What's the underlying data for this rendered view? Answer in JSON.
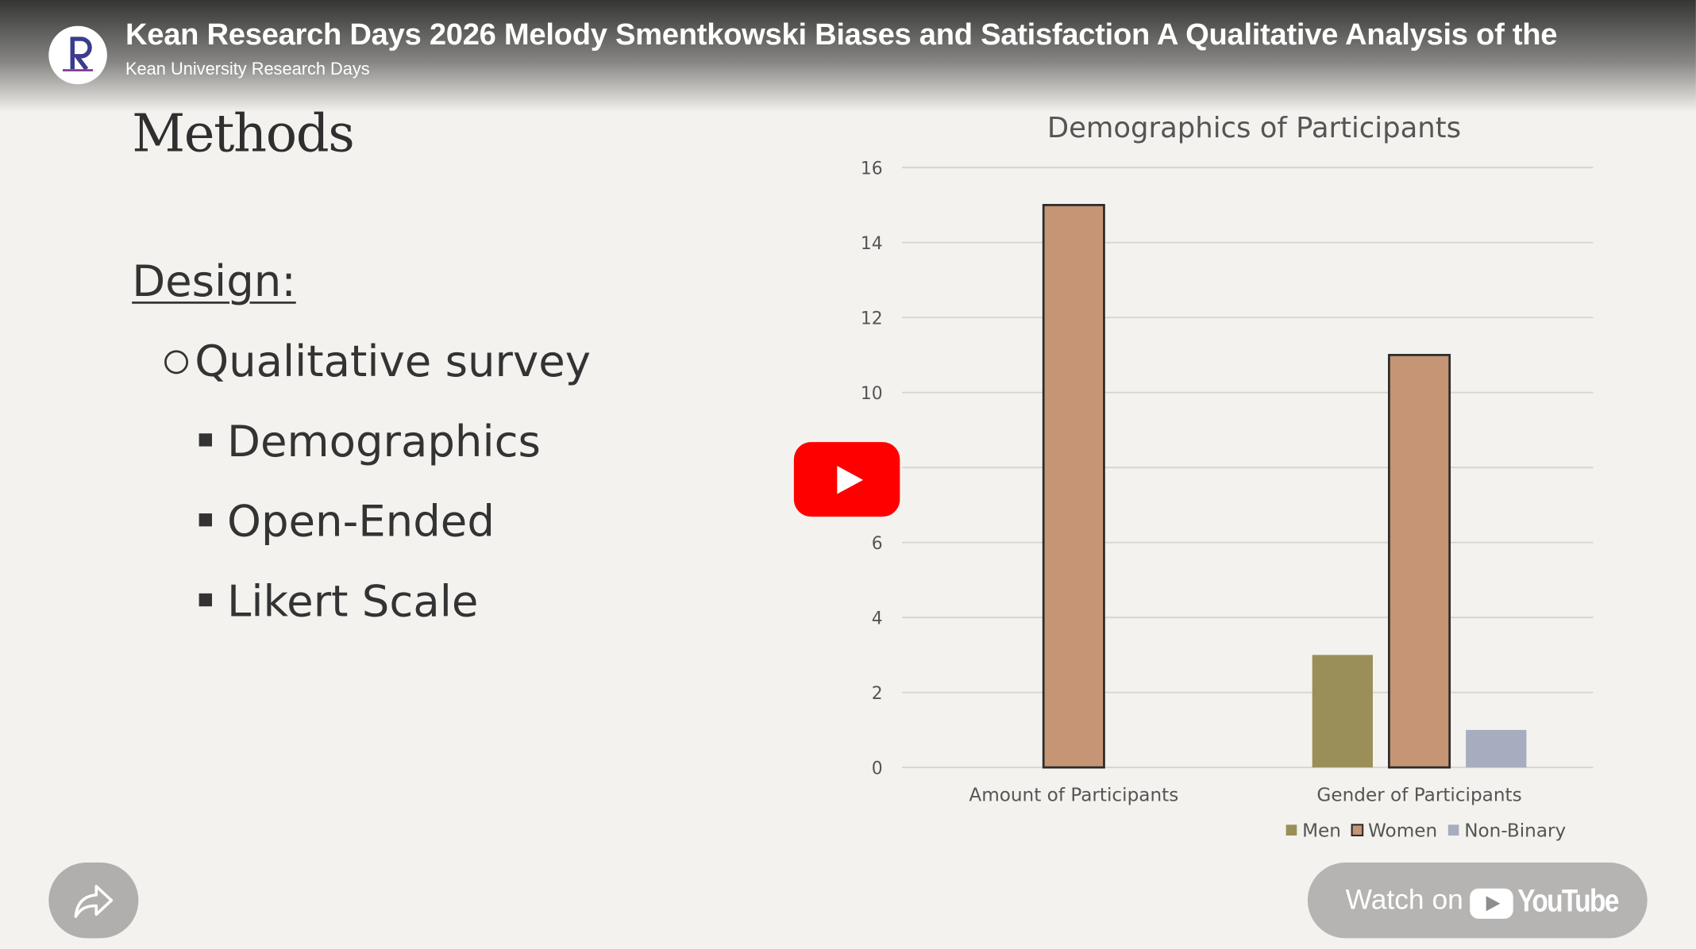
{
  "video": {
    "title": "Kean Research Days 2026 Melody Smentkowski Biases and Satisfaction A Qualitative Analysis of the",
    "channel": "Kean University Research Days",
    "channel_logo_icon": "research-days-logo-icon"
  },
  "slide": {
    "heading": "Methods",
    "design_label": "Design:",
    "sub_item": "Qualitative survey",
    "bullets": [
      "Demographics",
      "Open-Ended",
      "Likert Scale"
    ]
  },
  "chart_data": {
    "type": "bar",
    "title": "Demographics of Participants",
    "categories": [
      "Amount of Participants",
      "Gender of Participants"
    ],
    "series": [
      {
        "name": "Men",
        "values": [
          0,
          3
        ],
        "color": "#9a8f58"
      },
      {
        "name": "Women",
        "values": [
          15,
          11
        ],
        "color": "#c69575"
      },
      {
        "name": "Non-Binary",
        "values": [
          0,
          1
        ],
        "color": "#a7adbf"
      }
    ],
    "ylim": [
      0,
      16
    ],
    "yticks": [
      0,
      2,
      4,
      6,
      8,
      10,
      12,
      14,
      16
    ],
    "grid": true,
    "legend": "bottom-right"
  },
  "controls": {
    "play_icon": "play-icon",
    "share_icon": "share-icon",
    "watch_label": "Watch on",
    "youtube_word": "YouTube",
    "accent": "#ff0000"
  }
}
